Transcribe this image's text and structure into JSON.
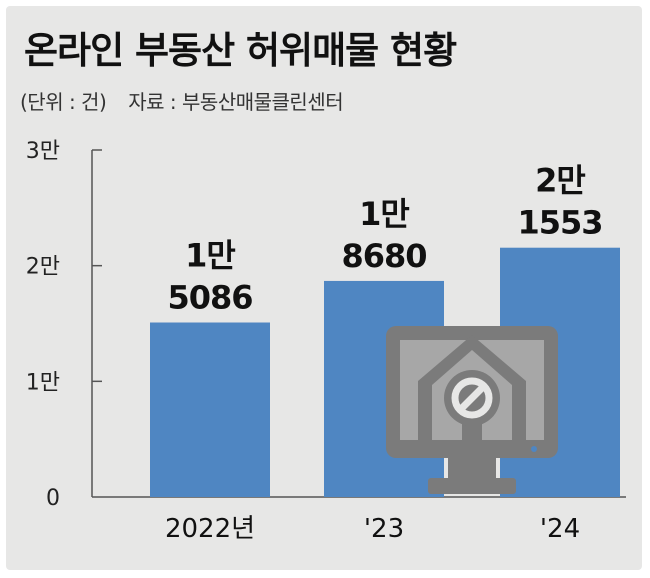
{
  "header": {
    "title": "온라인 부동산 허위매물 현황",
    "unit": "(단위 : 건)",
    "source": "자료 : 부동산매물클린센터"
  },
  "colors": {
    "background": "#e7e7e6",
    "bar": "#4f86c2",
    "axis": "#555555",
    "icon": "#7b7b7b",
    "icon_light": "#a7a7a7"
  },
  "icon": {
    "name": "monitor-house-no-icon"
  },
  "chart_data": {
    "type": "bar",
    "categories": [
      "2022년",
      "'23",
      "'24"
    ],
    "values": [
      15086,
      18680,
      21553
    ],
    "value_labels": [
      [
        "1만",
        "5086"
      ],
      [
        "1만",
        "8680"
      ],
      [
        "2만",
        "1553"
      ]
    ],
    "yticks": [
      0,
      10000,
      20000,
      30000
    ],
    "ytick_labels": [
      "0",
      "1만",
      "2만",
      "3만"
    ],
    "ylim": [
      0,
      30000
    ],
    "title": "",
    "xlabel": "",
    "ylabel": "",
    "grid": false,
    "legend": "none"
  }
}
